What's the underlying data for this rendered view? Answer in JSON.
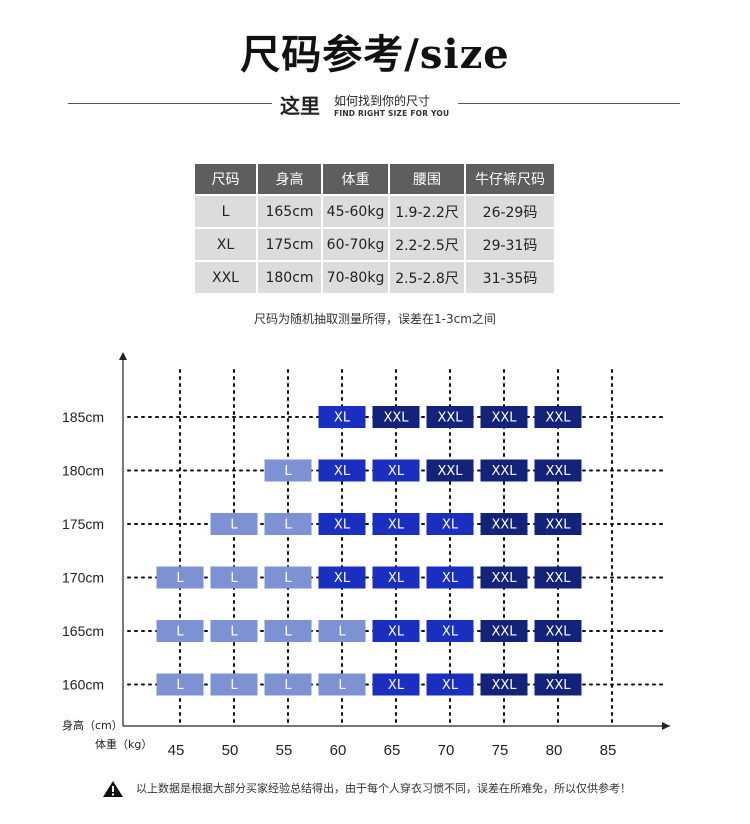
{
  "title": "尺码参考/size",
  "subtitle": {
    "big": "这里",
    "cn": "如何找到你的尺寸",
    "en": "FIND RIGHT SIZE FOR YOU"
  },
  "table": {
    "headers": [
      "尺码",
      "身高",
      "体重",
      "腰围",
      "牛仔裤尺码"
    ],
    "rows": [
      [
        "L",
        "165cm",
        "45-60kg",
        "1.9-2.2尺",
        "26-29码"
      ],
      [
        "XL",
        "175cm",
        "60-70kg",
        "2.2-2.5尺",
        "29-31码"
      ],
      [
        "XXL",
        "180cm",
        "70-80kg",
        "2.5-2.8尺",
        "31-35码"
      ]
    ]
  },
  "note": "尺码为随机抽取测量所得，误差在1-3cm之间",
  "colors": {
    "L": "#7d92d3",
    "XL": "#1a2fbf",
    "XXL": "#14237a"
  },
  "chart_data": {
    "type": "table",
    "ylabel": "身高（cm）",
    "xlabel": "体重（kg）",
    "x": [
      45,
      50,
      55,
      60,
      65,
      70,
      75,
      80,
      85
    ],
    "y": [
      "185cm",
      "180cm",
      "175cm",
      "170cm",
      "165cm",
      "160cm"
    ],
    "cells": [
      {
        "height": "185cm",
        "sizes": {
          "60": "XL",
          "65": "XXL",
          "70": "XXL",
          "75": "XXL",
          "80": "XXL"
        }
      },
      {
        "height": "180cm",
        "sizes": {
          "55": "L",
          "60": "XL",
          "65": "XL",
          "70": "XXL",
          "75": "XXL",
          "80": "XXL"
        }
      },
      {
        "height": "175cm",
        "sizes": {
          "50": "L",
          "55": "L",
          "60": "XL",
          "65": "XL",
          "70": "XL",
          "75": "XXL",
          "80": "XXL"
        }
      },
      {
        "height": "170cm",
        "sizes": {
          "45": "L",
          "50": "L",
          "55": "L",
          "60": "XL",
          "65": "XL",
          "70": "XL",
          "75": "XXL",
          "80": "XXL"
        }
      },
      {
        "height": "165cm",
        "sizes": {
          "45": "L",
          "50": "L",
          "55": "L",
          "60": "L",
          "65": "XL",
          "70": "XL",
          "75": "XXL",
          "80": "XXL"
        }
      },
      {
        "height": "160cm",
        "sizes": {
          "45": "L",
          "50": "L",
          "55": "L",
          "60": "L",
          "65": "XL",
          "70": "XL",
          "75": "XXL",
          "80": "XXL"
        }
      }
    ]
  },
  "footer": "以上数据是根据大部分买家经验总结得出，由于每个人穿衣习惯不同，误差在所难免，所以仅供参考！",
  "icons": {
    "footer": "warning-icon"
  }
}
